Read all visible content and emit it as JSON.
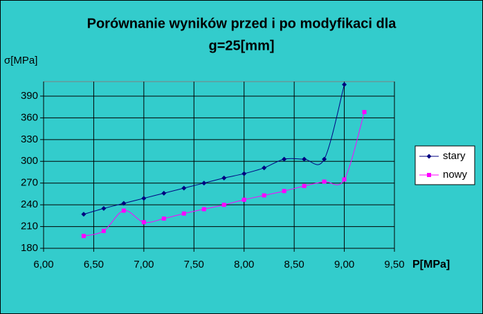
{
  "chart_data": {
    "type": "line",
    "title": [
      "Porównanie wyników przed i po modyfikaci dla",
      "g=25[mm]"
    ],
    "y_label": "σ[MPa]",
    "x_label": "P[MPa]",
    "xlim": [
      6.0,
      9.5
    ],
    "xticks": [
      {
        "value": 6.0,
        "label": "6,00"
      },
      {
        "value": 6.5,
        "label": "6,50"
      },
      {
        "value": 7.0,
        "label": "7,00"
      },
      {
        "value": 7.5,
        "label": "7,50"
      },
      {
        "value": 8.0,
        "label": "8,00"
      },
      {
        "value": 8.5,
        "label": "8,50"
      },
      {
        "value": 9.0,
        "label": "9,00"
      },
      {
        "value": 9.5,
        "label": "9,50"
      }
    ],
    "ylim": [
      180,
      410
    ],
    "yticks": [
      180,
      210,
      240,
      270,
      300,
      330,
      360,
      390
    ],
    "grid": true,
    "legend": "right",
    "series": [
      {
        "name": "stary",
        "color": "#000080",
        "marker": "diamond",
        "x": [
          6.4,
          6.6,
          6.8,
          7.0,
          7.2,
          7.4,
          7.6,
          7.8,
          8.0,
          8.2,
          8.4,
          8.6,
          8.8,
          9.0
        ],
        "values": [
          227,
          235,
          242,
          249,
          256,
          263,
          270,
          277,
          283,
          291,
          303,
          303,
          303,
          406
        ]
      },
      {
        "name": "nowy",
        "color": "#ff00ff",
        "marker": "square",
        "x": [
          6.4,
          6.6,
          6.8,
          7.0,
          7.2,
          7.4,
          7.6,
          7.8,
          8.0,
          8.2,
          8.4,
          8.6,
          8.8,
          9.0,
          9.2
        ],
        "values": [
          197,
          204,
          232,
          216,
          221,
          228,
          234,
          240,
          247,
          253,
          259,
          266,
          272,
          275,
          368
        ]
      }
    ]
  }
}
